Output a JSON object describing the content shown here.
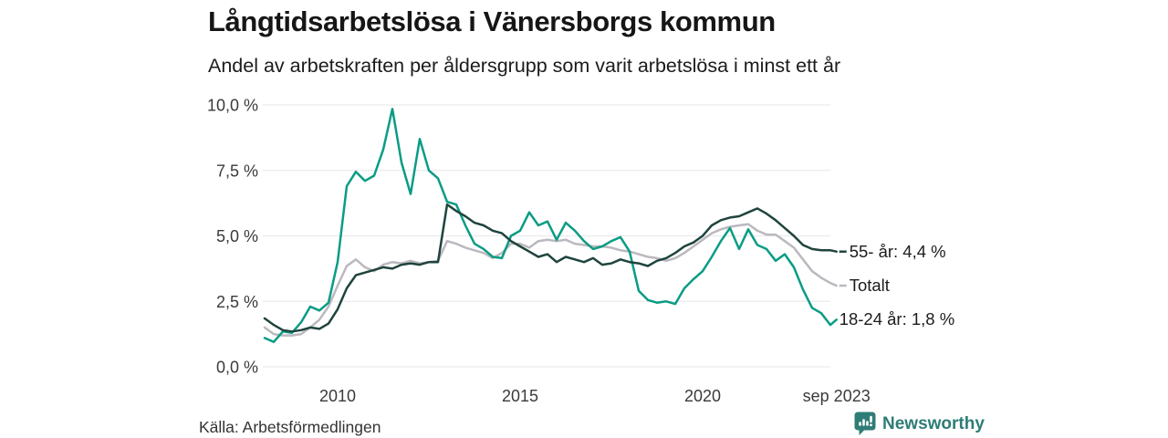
{
  "header": {
    "title": "Långtidsarbetslösa i Vänersborgs kommun",
    "subtitle": "Andel av arbetskraften per åldersgrupp som varit arbetslösa i minst ett år"
  },
  "footer": {
    "source": "Källa: Arbetsförmedlingen",
    "brand": "Newsworthy"
  },
  "colors": {
    "background": "#ffffff",
    "gridline": "#e8e6e9",
    "axis_text": "#3a3a3a",
    "title_text": "#161616",
    "brand_teal": "#2e7d76",
    "series_55": "#1f443e",
    "series_total": "#bcb8bf",
    "series_18_24": "#0a9c84"
  },
  "chart_data": {
    "type": "line",
    "title": "Långtidsarbetslösa i Vänersborgs kommun",
    "subtitle": "Andel av arbetskraften per åldersgrupp som varit arbetslösa i minst ett år",
    "xlabel": "",
    "ylabel": "",
    "grid": "horizontal",
    "legend_position": "right-end-labels",
    "ylim": [
      0,
      10
    ],
    "xlim": [
      2008,
      2023.667
    ],
    "y_ticks": [
      {
        "label": "0,0 %",
        "value": 0
      },
      {
        "label": "2,5 %",
        "value": 2.5
      },
      {
        "label": "5,0 %",
        "value": 5
      },
      {
        "label": "7,5 %",
        "value": 7.5
      },
      {
        "label": "10,0 %",
        "value": 10
      }
    ],
    "x_ticks": [
      {
        "label": "2010",
        "value": 2010
      },
      {
        "label": "2015",
        "value": 2015
      },
      {
        "label": "2020",
        "value": 2020
      },
      {
        "label": "sep 2023",
        "value": 2023.667
      }
    ],
    "x": [
      2008,
      2008.25,
      2008.5,
      2008.75,
      2009,
      2009.25,
      2009.5,
      2009.75,
      2010,
      2010.25,
      2010.5,
      2010.75,
      2011,
      2011.25,
      2011.5,
      2011.75,
      2012,
      2012.25,
      2012.5,
      2012.75,
      2013,
      2013.25,
      2013.5,
      2013.75,
      2014,
      2014.25,
      2014.5,
      2014.75,
      2015,
      2015.25,
      2015.5,
      2015.75,
      2016,
      2016.25,
      2016.5,
      2016.75,
      2017,
      2017.25,
      2017.5,
      2017.75,
      2018,
      2018.25,
      2018.5,
      2018.75,
      2019,
      2019.25,
      2019.5,
      2019.75,
      2020,
      2020.25,
      2020.5,
      2020.75,
      2021,
      2021.25,
      2021.5,
      2021.75,
      2022,
      2022.25,
      2022.5,
      2022.75,
      2023,
      2023.25,
      2023.5,
      2023.667
    ],
    "series": [
      {
        "name": "55- år",
        "end_label": "55- år: 4,4 %",
        "end_value": 4.4,
        "color": "#1f443e",
        "connector": true,
        "values": [
          1.85,
          1.6,
          1.4,
          1.35,
          1.4,
          1.5,
          1.45,
          1.65,
          2.2,
          3.0,
          3.5,
          3.6,
          3.7,
          3.8,
          3.75,
          3.9,
          3.95,
          3.9,
          4.0,
          4.0,
          6.2,
          5.95,
          5.75,
          5.5,
          5.4,
          5.2,
          5.1,
          4.8,
          4.6,
          4.4,
          4.2,
          4.3,
          4.0,
          4.2,
          4.1,
          4.0,
          4.15,
          3.9,
          3.95,
          4.1,
          4.0,
          3.95,
          3.85,
          4.05,
          4.15,
          4.35,
          4.6,
          4.75,
          5.0,
          5.4,
          5.6,
          5.7,
          5.75,
          5.9,
          6.05,
          5.85,
          5.6,
          5.3,
          5.0,
          4.65,
          4.5,
          4.45,
          4.45,
          4.4
        ]
      },
      {
        "name": "Totalt",
        "end_label": "Totalt",
        "end_value": 3.1,
        "color": "#bcb8bf",
        "connector": true,
        "values": [
          1.5,
          1.25,
          1.2,
          1.2,
          1.25,
          1.5,
          1.8,
          2.3,
          3.1,
          3.85,
          4.1,
          3.8,
          3.65,
          3.9,
          4.0,
          3.95,
          4.05,
          3.95,
          4.0,
          4.05,
          4.8,
          4.7,
          4.55,
          4.45,
          4.35,
          4.15,
          4.35,
          4.7,
          4.7,
          4.55,
          4.8,
          4.85,
          4.8,
          4.85,
          4.7,
          4.65,
          4.6,
          4.6,
          4.55,
          4.45,
          4.4,
          4.3,
          4.2,
          4.15,
          4.05,
          4.15,
          4.35,
          4.6,
          4.85,
          5.1,
          5.25,
          5.35,
          5.4,
          5.45,
          5.2,
          5.05,
          5.05,
          4.8,
          4.55,
          4.1,
          3.65,
          3.4,
          3.2,
          3.1
        ]
      },
      {
        "name": "18-24 år",
        "end_label": "18-24 år: 1,8 %",
        "end_value": 1.8,
        "color": "#0a9c84",
        "connector": false,
        "values": [
          1.1,
          0.95,
          1.35,
          1.3,
          1.7,
          2.3,
          2.15,
          2.45,
          4.0,
          6.9,
          7.45,
          7.1,
          7.3,
          8.3,
          9.85,
          7.8,
          6.6,
          8.7,
          7.5,
          7.2,
          6.3,
          6.2,
          5.4,
          4.7,
          4.5,
          4.2,
          4.15,
          5.0,
          5.2,
          5.9,
          5.4,
          5.55,
          4.85,
          5.5,
          5.2,
          4.8,
          4.5,
          4.6,
          4.8,
          4.95,
          4.4,
          2.9,
          2.55,
          2.45,
          2.5,
          2.4,
          3.0,
          3.35,
          3.65,
          4.2,
          4.8,
          5.3,
          4.5,
          5.25,
          4.65,
          4.5,
          4.05,
          4.3,
          3.8,
          2.95,
          2.25,
          2.05,
          1.6,
          1.8
        ]
      }
    ]
  }
}
